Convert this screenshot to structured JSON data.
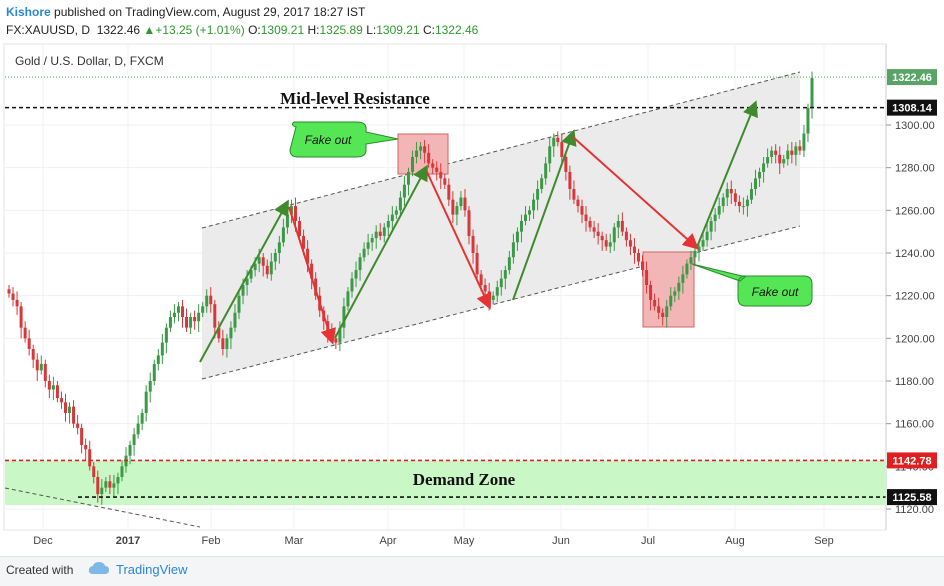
{
  "header": {
    "author": "Kishore",
    "published_text": "published on TradingView.com, August 29, 2017 18:27 IST",
    "symbol": "FX:XAUUSD, D",
    "last": "1322.46",
    "change": "+13.25 (+1.01%)",
    "open_label": "O:",
    "open": "1309.21",
    "high_label": "H:",
    "high": "1325.89",
    "low_label": "L:",
    "low": "1309.21",
    "close_label": "C:",
    "close": "1322.46"
  },
  "footer": {
    "created_with": "Created with",
    "brand": "TradingView"
  },
  "colors": {
    "up": "#3a9a46",
    "down": "#d8373a",
    "green_arrow": "#3f8a2d",
    "red_arrow": "#e53232",
    "zone": "#c9f7c6",
    "channel": "#ebebeb",
    "fake_box": "#f3b6b6"
  },
  "chart_data": {
    "type": "candlestick",
    "title": "Gold / U.S. Dollar, D, FXCM",
    "ylim": [
      1110,
      1335
    ],
    "y_ticks": [
      1120,
      1140,
      1160,
      1180,
      1200,
      1220,
      1240,
      1260,
      1280,
      1300
    ],
    "y_tick_labels": [
      "1120.00",
      "1140.00",
      "1160.00",
      "1180.00",
      "1200.00",
      "1220.00",
      "1240.00",
      "1260.00",
      "1280.00",
      "1300.00"
    ],
    "x_tick_labels": [
      "Dec",
      "2017",
      "Feb",
      "Mar",
      "Apr",
      "May",
      "Jun",
      "Jul",
      "Aug",
      "Sep"
    ],
    "price_labels": [
      {
        "text": "1322.46",
        "value": 1322.46,
        "style": "last"
      },
      {
        "text": "1308.14",
        "value": 1308.14,
        "style": "black"
      },
      {
        "text": "1142.78",
        "value": 1142.78,
        "style": "red"
      },
      {
        "text": "1125.58",
        "value": 1125.58,
        "style": "black"
      }
    ],
    "annotations": {
      "mid_resistance": {
        "label": "Mid-level Resistance",
        "value": 1308.14
      },
      "demand_zone": {
        "label": "Demand Zone",
        "top": 1142.78,
        "bottom": 1125.58
      },
      "fake_out_1": "Fake out",
      "fake_out_2": "Fake out"
    },
    "series": [
      {
        "name": "XAUUSD daily close (approx.)",
        "values": [
          1221,
          1218,
          1215,
          1205,
          1200,
          1195,
          1190,
          1185,
          1188,
          1180,
          1176,
          1178,
          1172,
          1170,
          1165,
          1168,
          1160,
          1158,
          1150,
          1148,
          1140,
          1135,
          1127,
          1130,
          1133,
          1130,
          1132,
          1135,
          1140,
          1145,
          1150,
          1155,
          1160,
          1165,
          1175,
          1180,
          1188,
          1192,
          1198,
          1205,
          1210,
          1212,
          1215,
          1210,
          1205,
          1210,
          1208,
          1212,
          1215,
          1220,
          1216,
          1205,
          1200,
          1195,
          1200,
          1205,
          1212,
          1220,
          1225,
          1228,
          1232,
          1235,
          1238,
          1234,
          1230,
          1236,
          1240,
          1245,
          1252,
          1258,
          1262,
          1255,
          1248,
          1242,
          1235,
          1228,
          1220,
          1213,
          1208,
          1203,
          1200,
          1198,
          1205,
          1215,
          1222,
          1228,
          1232,
          1238,
          1242,
          1245,
          1247,
          1250,
          1248,
          1252,
          1255,
          1258,
          1260,
          1266,
          1272,
          1278,
          1285,
          1288,
          1290,
          1287,
          1282,
          1280,
          1278,
          1275,
          1272,
          1265,
          1258,
          1262,
          1266,
          1260,
          1248,
          1240,
          1230,
          1225,
          1222,
          1218,
          1220,
          1224,
          1228,
          1232,
          1238,
          1245,
          1250,
          1255,
          1258,
          1260,
          1265,
          1270,
          1275,
          1282,
          1290,
          1294,
          1292,
          1285,
          1278,
          1270,
          1265,
          1262,
          1258,
          1255,
          1252,
          1250,
          1248,
          1246,
          1243,
          1245,
          1252,
          1255,
          1250,
          1246,
          1243,
          1240,
          1236,
          1232,
          1225,
          1218,
          1215,
          1212,
          1210,
          1215,
          1220,
          1222,
          1226,
          1230,
          1235,
          1238,
          1241,
          1243,
          1246,
          1250,
          1255,
          1258,
          1262,
          1266,
          1270,
          1268,
          1264,
          1262,
          1262,
          1265,
          1270,
          1275,
          1278,
          1282,
          1285,
          1288,
          1286,
          1282,
          1284,
          1288,
          1286,
          1290,
          1288,
          1296,
          1308,
          1322
        ]
      }
    ]
  }
}
